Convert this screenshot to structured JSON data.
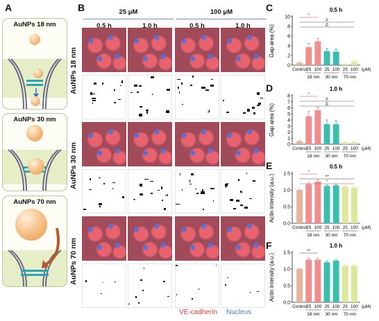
{
  "labels": {
    "A": "A",
    "B": "B",
    "C": "C",
    "D": "D",
    "E": "E",
    "F": "F"
  },
  "panelA": {
    "box1_title": "AuNPs 18 nm",
    "box2_title": "AuNPs 30 nm",
    "box3_title": "AuNPs 70 nm"
  },
  "panelB": {
    "conc1": "25 μM",
    "conc2": "100 μM",
    "times": [
      "0.5 h",
      "1.0 h",
      "0.5 h",
      "1.0 h"
    ],
    "rows": [
      "AuNPs 18 nm",
      "AuNPs 30 nm",
      "AuNPs 70 nm"
    ],
    "legend_red": "VE-cadherin",
    "legend_blue": "Nucleus",
    "colors": {
      "red": "#e23b3b",
      "blue": "#3b7fc9"
    }
  },
  "chart_data": [
    {
      "panel": "C",
      "type": "bar",
      "title": "0.5 h",
      "ylabel": "Gap area (%)",
      "ylim": [
        0,
        10
      ],
      "yticks": [
        0,
        2,
        4,
        6,
        8,
        10
      ],
      "categories": [
        "Control",
        "25",
        "100",
        "25",
        "100",
        "25",
        "100"
      ],
      "groups": [
        {
          "label": "18 nm",
          "from": 1,
          "to": 2
        },
        {
          "label": "30 nm",
          "from": 3,
          "to": 4
        },
        {
          "label": "70 nm",
          "from": 5,
          "to": 6
        }
      ],
      "unit": "(μM)",
      "values": [
        0.5,
        3.7,
        4.9,
        2.9,
        2.8,
        0.2,
        0.8
      ],
      "errors": [
        0.2,
        0.8,
        0.6,
        0.5,
        0.5,
        0.1,
        0.2
      ],
      "significance": [
        "*",
        "#",
        "&"
      ]
    },
    {
      "panel": "D",
      "type": "bar",
      "title": "1.0 h",
      "ylabel": "Gap area (%)",
      "ylim": [
        0,
        8
      ],
      "yticks": [
        0,
        1,
        2,
        3,
        4,
        5,
        6,
        7,
        8
      ],
      "categories": [
        "Control",
        "25",
        "100",
        "25",
        "100",
        "25",
        "100"
      ],
      "groups": [
        {
          "label": "18 nm",
          "from": 1,
          "to": 2
        },
        {
          "label": "30 nm",
          "from": 3,
          "to": 4
        },
        {
          "label": "70 nm",
          "from": 5,
          "to": 6
        }
      ],
      "unit": "(μM)",
      "values": [
        0.5,
        4.6,
        5.6,
        3.3,
        3.3,
        0.3,
        0.3
      ],
      "errors": [
        0.2,
        0.8,
        0.5,
        0.7,
        0.6,
        0.1,
        0.1
      ],
      "significance": [
        "*",
        "#",
        "&"
      ]
    },
    {
      "panel": "E",
      "type": "bar",
      "title": "0.5 h",
      "ylabel": "Actin intensity (a.u.)",
      "ylim": [
        0,
        1.5
      ],
      "yticks": [
        0.0,
        0.5,
        1.0,
        1.5
      ],
      "categories": [
        "Control",
        "25",
        "100",
        "25",
        "100",
        "25",
        "100"
      ],
      "groups": [
        {
          "label": "18 nm",
          "from": 1,
          "to": 2
        },
        {
          "label": "30 nm",
          "from": 3,
          "to": 4
        },
        {
          "label": "70 nm",
          "from": 5,
          "to": 6
        }
      ],
      "unit": "(μM)",
      "values": [
        1.0,
        1.17,
        1.25,
        1.12,
        1.14,
        1.1,
        1.07
      ],
      "errors": [
        0.02,
        0.04,
        0.05,
        0.03,
        0.03,
        0.03,
        0.03
      ],
      "significance": [
        "*",
        "**",
        "*"
      ]
    },
    {
      "panel": "F",
      "type": "bar",
      "title": "1.0 h",
      "ylabel": "Actin intensity (a.u.)",
      "ylim": [
        0,
        1.5
      ],
      "yticks": [
        0.0,
        0.5,
        1.0,
        1.5
      ],
      "categories": [
        "Control",
        "25",
        "100",
        "25",
        "100",
        "25",
        "100"
      ],
      "groups": [
        {
          "label": "18 nm",
          "from": 1,
          "to": 2
        },
        {
          "label": "30 nm",
          "from": 3,
          "to": 4
        },
        {
          "label": "70 nm",
          "from": 5,
          "to": 6
        }
      ],
      "unit": "(μM)",
      "values": [
        1.0,
        1.28,
        1.28,
        1.2,
        1.25,
        1.1,
        1.1
      ],
      "errors": [
        0.02,
        0.05,
        0.05,
        0.04,
        0.04,
        0.03,
        0.03
      ],
      "significance": [
        "**"
      ]
    }
  ],
  "bar_colors": [
    "#e8b39b",
    "#f08e8e",
    "#f08e8e",
    "#3bbfad",
    "#3bbfad",
    "#dde89a",
    "#dde89a"
  ],
  "sig_colors": {
    "*": "#e23b3b",
    "#": "#555555",
    "&": "#555555",
    "**": "#333333"
  }
}
